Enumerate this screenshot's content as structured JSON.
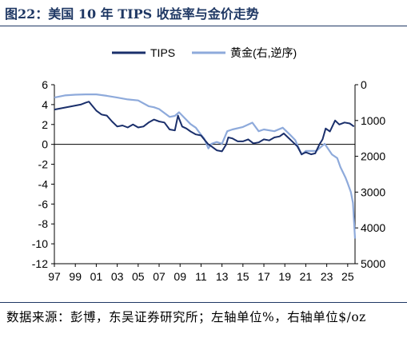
{
  "header": {
    "title": "图22：美国 10 年 TIPS 收益率与金价走势"
  },
  "footer": {
    "source": "数据来源：彭博，东吴证券研究所；左轴单位%，右轴单位$/oz"
  },
  "colors": {
    "tips": "#1a2f6b",
    "gold": "#8eaadb",
    "axis": "#000000",
    "rule": "#1f3864"
  },
  "chart_data": {
    "type": "line",
    "title": "",
    "xlabel": "",
    "ylabel": "",
    "legend_position": "top",
    "grid": false,
    "x_tick_labels": [
      "97",
      "99",
      "01",
      "03",
      "05",
      "07",
      "09",
      "11",
      "13",
      "15",
      "17",
      "19",
      "21",
      "23",
      "25"
    ],
    "x_range": [
      1997.0,
      2025.7
    ],
    "y_left": {
      "range": [
        -12,
        6
      ],
      "ticks": [
        "6",
        "4",
        "2",
        "0",
        "-2",
        "-4",
        "-6",
        "-8",
        "-10",
        "-12"
      ]
    },
    "y_right": {
      "range": [
        0,
        5000
      ],
      "inverted": true,
      "ticks": [
        "0",
        "1000",
        "2000",
        "3000",
        "4000",
        "5000"
      ]
    },
    "series": [
      {
        "name": "TIPS",
        "axis": "left",
        "x": [
          1997.0,
          1997.5,
          1998.0,
          1998.5,
          1999.0,
          1999.5,
          2000.0,
          2000.3,
          2000.6,
          2001.0,
          2001.5,
          2002.0,
          2002.5,
          2003.0,
          2003.5,
          2004.0,
          2004.5,
          2005.0,
          2005.5,
          2006.0,
          2006.5,
          2007.0,
          2007.5,
          2008.0,
          2008.5,
          2008.8,
          2008.9,
          2009.2,
          2009.6,
          2010.0,
          2010.5,
          2011.0,
          2011.3,
          2011.7,
          2012.0,
          2012.5,
          2013.0,
          2013.4,
          2013.6,
          2014.0,
          2014.5,
          2015.0,
          2015.5,
          2016.0,
          2016.5,
          2017.0,
          2017.5,
          2018.0,
          2018.5,
          2018.9,
          2019.3,
          2019.8,
          2020.2,
          2020.6,
          2021.0,
          2021.5,
          2021.9,
          2022.3,
          2022.6,
          2022.9,
          2023.3,
          2023.8,
          2024.2,
          2024.7,
          2025.2,
          2025.6
        ],
        "y": [
          3.5,
          3.6,
          3.7,
          3.8,
          3.9,
          4.0,
          4.2,
          4.3,
          3.9,
          3.4,
          3.0,
          2.9,
          2.3,
          1.8,
          1.9,
          1.7,
          2.0,
          1.7,
          1.8,
          2.2,
          2.5,
          2.3,
          2.2,
          1.5,
          1.4,
          2.9,
          2.6,
          1.8,
          1.6,
          1.3,
          1.0,
          0.9,
          0.5,
          0.0,
          -0.2,
          -0.6,
          -0.7,
          0.0,
          0.7,
          0.6,
          0.3,
          0.3,
          0.5,
          0.1,
          0.2,
          0.5,
          0.4,
          0.7,
          0.8,
          1.1,
          0.7,
          0.2,
          -0.2,
          -1.0,
          -0.8,
          -1.0,
          -0.9,
          0.0,
          0.5,
          1.6,
          1.3,
          2.4,
          2.0,
          2.2,
          2.1,
          1.8
        ]
      },
      {
        "name": "黄金(右,逆序)",
        "axis": "right",
        "x": [
          1997.0,
          1998.0,
          1999.0,
          2000.0,
          2001.0,
          2002.0,
          2003.0,
          2004.0,
          2005.0,
          2006.0,
          2006.5,
          2007.0,
          2008.0,
          2008.5,
          2008.9,
          2009.5,
          2010.0,
          2010.5,
          2011.0,
          2011.3,
          2011.7,
          2012.0,
          2012.5,
          2013.0,
          2013.5,
          2014.0,
          2015.0,
          2015.9,
          2016.5,
          2017.0,
          2018.0,
          2018.8,
          2019.5,
          2020.0,
          2020.6,
          2021.0,
          2022.0,
          2022.8,
          2023.5,
          2024.0,
          2024.3,
          2024.8,
          2025.0,
          2025.3,
          2025.5,
          2025.7
        ],
        "y": [
          360,
          300,
          280,
          270,
          270,
          310,
          360,
          410,
          440,
          600,
          630,
          680,
          900,
          870,
          770,
          950,
          1100,
          1200,
          1400,
          1500,
          1780,
          1650,
          1600,
          1650,
          1300,
          1250,
          1180,
          1060,
          1300,
          1250,
          1300,
          1200,
          1400,
          1550,
          1950,
          1850,
          1850,
          1650,
          1950,
          2050,
          2300,
          2600,
          2750,
          3000,
          3300,
          4300
        ]
      }
    ]
  }
}
